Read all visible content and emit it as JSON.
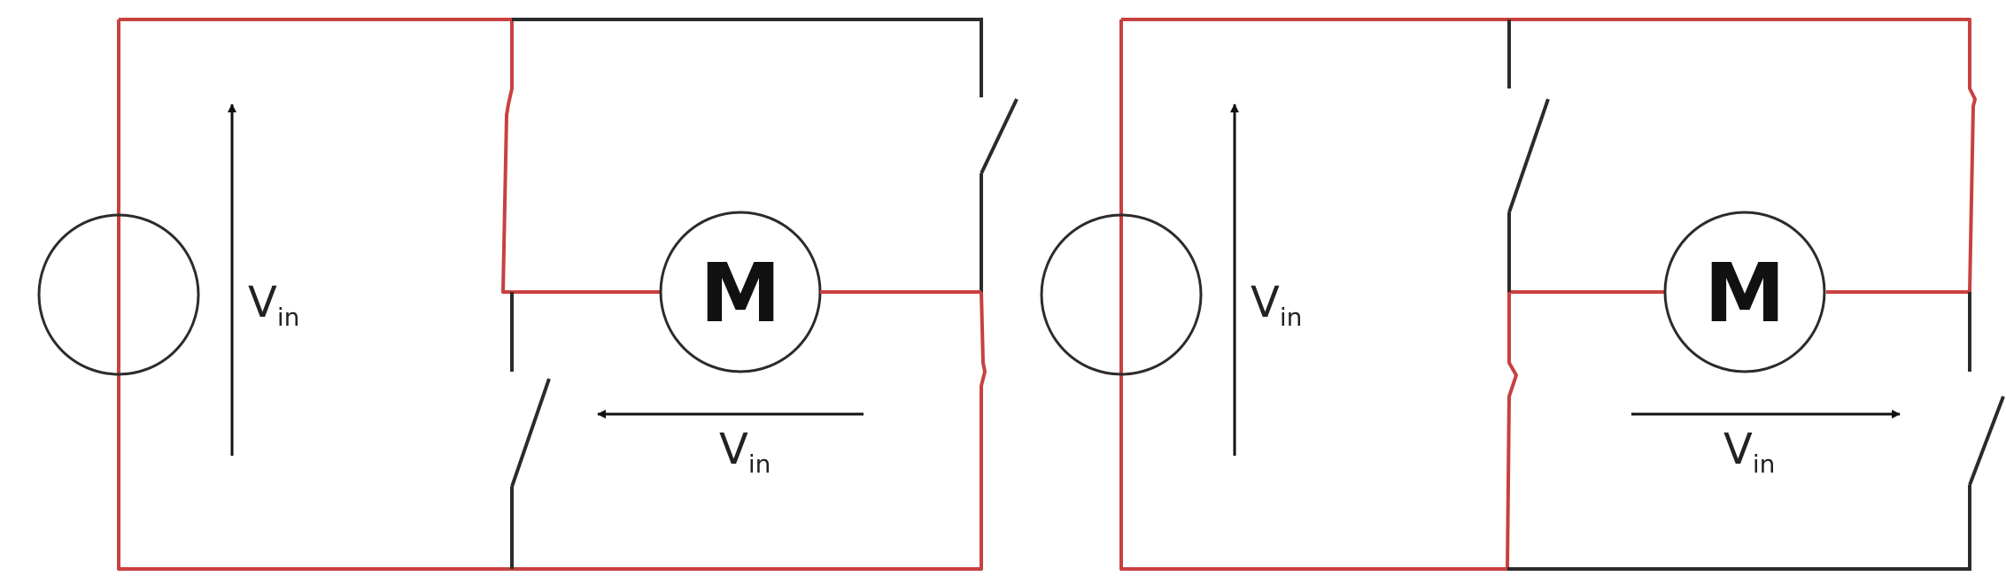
{
  "colors": {
    "active_wire": "#c94040",
    "inactive_wire": "#2b2b2b",
    "background": "#ffffff"
  },
  "circuits": [
    {
      "id": "left",
      "motor_label": "M",
      "source_voltage": {
        "label": "V",
        "subscript": "in"
      },
      "motor_voltage": {
        "label": "V",
        "subscript": "in",
        "arrow_direction": "left"
      }
    },
    {
      "id": "right",
      "motor_label": "M",
      "source_voltage": {
        "label": "V",
        "subscript": "in"
      },
      "motor_voltage": {
        "label": "V",
        "subscript": "in",
        "arrow_direction": "right"
      }
    }
  ]
}
